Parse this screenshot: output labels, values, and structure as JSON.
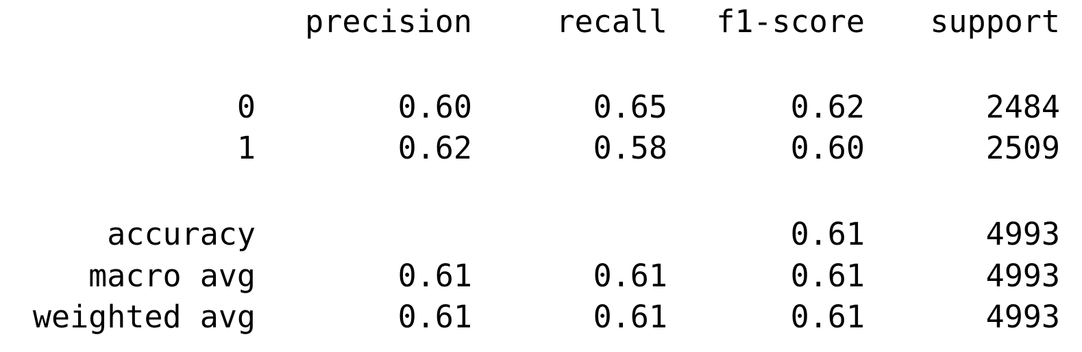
{
  "report": {
    "headers": {
      "precision": "precision",
      "recall": "recall",
      "f1_score": "f1-score",
      "support": "support"
    },
    "classes": [
      {
        "label": "0",
        "precision": "0.60",
        "recall": "0.65",
        "f1_score": "0.62",
        "support": "2484"
      },
      {
        "label": "1",
        "precision": "0.62",
        "recall": "0.58",
        "f1_score": "0.60",
        "support": "2509"
      }
    ],
    "accuracy": {
      "label": "accuracy",
      "f1_score": "0.61",
      "support": "4993"
    },
    "macro_avg": {
      "label": "macro avg",
      "precision": "0.61",
      "recall": "0.61",
      "f1_score": "0.61",
      "support": "4993"
    },
    "weighted_avg": {
      "label": "weighted avg",
      "precision": "0.61",
      "recall": "0.61",
      "f1_score": "0.61",
      "support": "4993"
    }
  }
}
